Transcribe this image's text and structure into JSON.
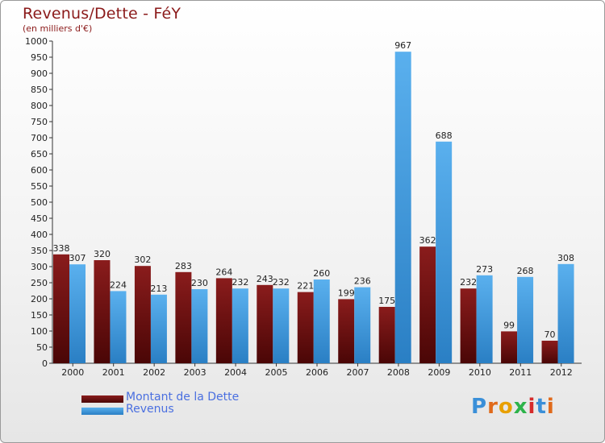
{
  "title": "Revenus/Dette - FéY",
  "subtitle": "(en milliers d'€)",
  "legend": {
    "debt_label": "Montant de la Dette",
    "revenue_label": "Revenus"
  },
  "logo": {
    "text": "Proxiti",
    "letters": [
      "P",
      "r",
      "o",
      "x",
      "i",
      "t",
      "i"
    ]
  },
  "colors": {
    "debt": "#6b0f0f",
    "revenue": "#3d9be0",
    "title": "#8b1a1a",
    "logo": [
      "#3a8fd8",
      "#e06a1b",
      "#e8a000",
      "#2db34a",
      "#d62b2b",
      "#3a8fd8",
      "#e06a1b"
    ]
  },
  "chart_data": {
    "type": "bar",
    "title": "Revenus/Dette - FéY",
    "ylabel": "(en milliers d'€)",
    "xlabel": "",
    "ylim": [
      0,
      1000
    ],
    "yticks": [
      0,
      50,
      100,
      150,
      200,
      250,
      300,
      350,
      400,
      450,
      500,
      550,
      600,
      650,
      700,
      750,
      800,
      850,
      900,
      950,
      1000
    ],
    "categories": [
      "2000",
      "2001",
      "2002",
      "2003",
      "2004",
      "2005",
      "2006",
      "2007",
      "2008",
      "2009",
      "2010",
      "2011",
      "2012"
    ],
    "series": [
      {
        "name": "Montant de la Dette",
        "values": [
          338,
          320,
          302,
          283,
          264,
          243,
          221,
          199,
          175,
          362,
          232,
          99,
          70
        ]
      },
      {
        "name": "Revenus",
        "values": [
          307,
          224,
          213,
          230,
          232,
          232,
          260,
          236,
          967,
          688,
          273,
          268,
          308
        ]
      }
    ],
    "legend_position": "bottom-left",
    "grid": false
  }
}
